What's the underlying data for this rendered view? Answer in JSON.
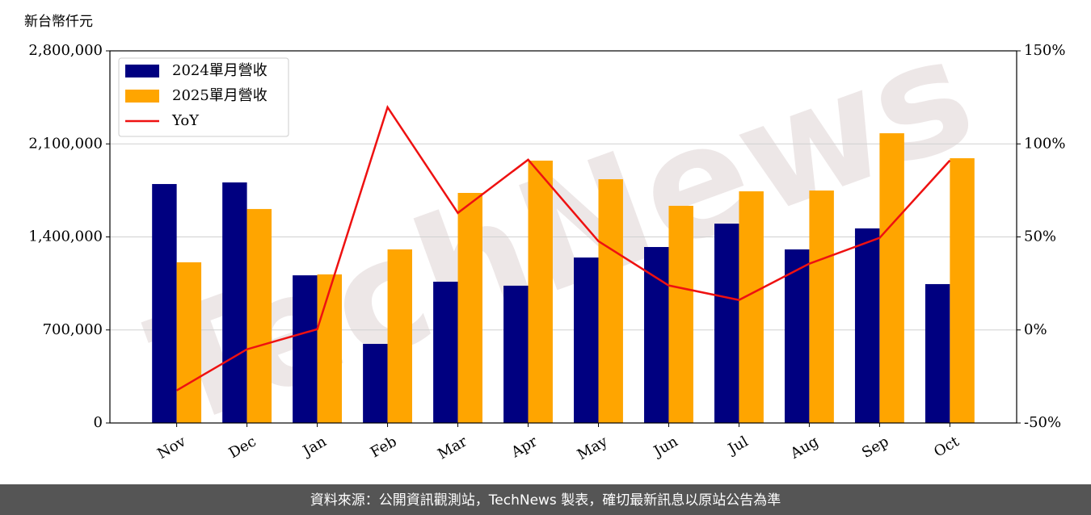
{
  "chart_data": {
    "type": "bar",
    "y_label": "新台幣仟元",
    "watermark": "TechNews",
    "footer": "資料來源：公開資訊觀測站，TechNews 製表，確切最新訊息以原站公告為準",
    "categories": [
      "Nov",
      "Dec",
      "Jan",
      "Feb",
      "Mar",
      "Apr",
      "May",
      "Jun",
      "Jul",
      "Aug",
      "Sep",
      "Oct"
    ],
    "series": [
      {
        "name": "2024單月營收",
        "color": "#000080",
        "type": "bar",
        "values": [
          1798000,
          1810000,
          1111000,
          595000,
          1063000,
          1033000,
          1245000,
          1324000,
          1500000,
          1306000,
          1464000,
          1045000
        ]
      },
      {
        "name": "2025單月營收",
        "color": "#ffa500",
        "type": "bar",
        "values": [
          1209000,
          1610000,
          1118000,
          1306000,
          1731000,
          1974000,
          1834000,
          1634000,
          1743000,
          1749000,
          2180000,
          1992000
        ]
      },
      {
        "name": "YoY",
        "color": "#ee1111",
        "type": "line",
        "axis": "y2",
        "values": [
          -32.5,
          -10.4,
          0.4,
          119.7,
          62.9,
          91.5,
          47.7,
          23.9,
          16.1,
          35.6,
          49.5,
          91.1
        ]
      }
    ],
    "ylim": [
      0,
      2800000
    ],
    "yticks": [
      0,
      {
        "value": 700000,
        "label": "700,000"
      },
      {
        "value": 1400000,
        "label": "1,400,000"
      },
      {
        "value": 2100000,
        "label": "2,100,000"
      },
      {
        "value": 2800000,
        "label": "2,800,000"
      }
    ],
    "y2lim": [
      -50,
      150
    ],
    "y2ticks": [
      {
        "value": -50,
        "label": "-50%"
      },
      {
        "value": 0,
        "label": "0%"
      },
      {
        "value": 50,
        "label": "50%"
      },
      {
        "value": 100,
        "label": "100%"
      },
      {
        "value": 150,
        "label": "150%"
      }
    ],
    "grid": true,
    "legend": "upper-left"
  }
}
